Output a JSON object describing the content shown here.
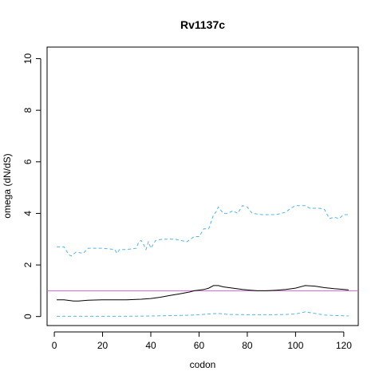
{
  "chart_data": {
    "type": "line",
    "title": "Rv1137c",
    "xlabel": "codon",
    "ylabel": "omega (dN/dS)",
    "xlim": [
      -3,
      126
    ],
    "ylim": [
      -0.35,
      10.45
    ],
    "xticks": [
      0,
      20,
      40,
      60,
      80,
      100,
      120
    ],
    "yticks": [
      0,
      2,
      4,
      6,
      8,
      10
    ],
    "grid": false,
    "reference_line": {
      "y": 1,
      "color": "#cc66cc"
    },
    "series": [
      {
        "style": "solid",
        "color": "#000000",
        "x": [
          1,
          4,
          8,
          10,
          14,
          20,
          25,
          30,
          36,
          40,
          44,
          48,
          52,
          56,
          58,
          62,
          64,
          66,
          68,
          70,
          74,
          78,
          80,
          84,
          88,
          92,
          96,
          100,
          104,
          108,
          112,
          116,
          120,
          122
        ],
        "y": [
          0.65,
          0.65,
          0.6,
          0.6,
          0.63,
          0.65,
          0.65,
          0.65,
          0.67,
          0.7,
          0.75,
          0.82,
          0.88,
          0.95,
          1.0,
          1.05,
          1.1,
          1.2,
          1.2,
          1.15,
          1.1,
          1.05,
          1.03,
          1.0,
          1.0,
          1.02,
          1.05,
          1.1,
          1.2,
          1.18,
          1.12,
          1.08,
          1.05,
          1.03
        ]
      },
      {
        "style": "dashed",
        "color": "#56b4e9",
        "x": [
          1,
          4,
          6,
          7,
          9,
          12,
          14,
          20,
          25,
          26,
          27,
          30,
          34,
          35,
          36,
          37,
          38,
          39,
          40,
          42,
          45,
          50,
          55,
          58,
          60,
          62,
          64,
          66,
          67,
          68,
          70,
          72,
          74,
          76,
          78,
          80,
          82,
          86,
          92,
          96,
          98,
          100,
          102,
          104,
          106,
          110,
          112,
          114,
          116,
          118,
          120,
          122
        ],
        "y": [
          2.7,
          2.7,
          2.4,
          2.35,
          2.5,
          2.45,
          2.65,
          2.65,
          2.6,
          2.45,
          2.6,
          2.6,
          2.65,
          2.9,
          2.95,
          2.8,
          2.6,
          2.9,
          2.65,
          2.95,
          3.0,
          3.0,
          2.9,
          3.1,
          3.1,
          3.4,
          3.4,
          3.95,
          4.05,
          4.25,
          4.0,
          4.0,
          4.1,
          4.0,
          4.3,
          4.25,
          4.0,
          3.95,
          3.95,
          4.05,
          4.2,
          4.3,
          4.3,
          4.3,
          4.2,
          4.2,
          4.15,
          3.8,
          3.85,
          3.8,
          3.95,
          3.95
        ]
      },
      {
        "style": "dashed",
        "color": "#56b4e9",
        "x": [
          1,
          10,
          20,
          30,
          40,
          50,
          55,
          60,
          64,
          68,
          72,
          80,
          90,
          96,
          100,
          104,
          108,
          112,
          116,
          120,
          122
        ],
        "y": [
          0.01,
          0.01,
          0.01,
          0.01,
          0.02,
          0.04,
          0.05,
          0.07,
          0.1,
          0.12,
          0.08,
          0.07,
          0.07,
          0.08,
          0.1,
          0.18,
          0.12,
          0.06,
          0.04,
          0.03,
          0.02
        ]
      }
    ]
  }
}
